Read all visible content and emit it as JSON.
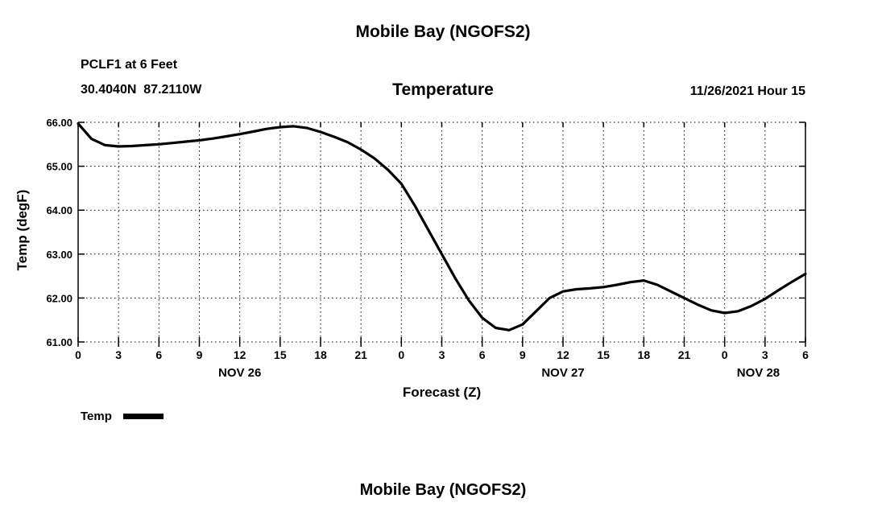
{
  "header": {
    "main_title": "Mobile Bay (NGOFS2)",
    "station_name": "PCLF1 at 6 Feet",
    "station_coords": "30.4040N  87.2110W",
    "plot_title": "Temperature",
    "run_info": "11/26/2021 Hour 15"
  },
  "footer": {
    "second_title": "Mobile Bay (NGOFS2)"
  },
  "colors": {
    "line": "#000000",
    "background": "#ffffff",
    "text": "#000000"
  },
  "chart_data": {
    "type": "line",
    "title": "Temperature",
    "xlabel": "Forecast (Z)",
    "ylabel": "Temp (degF)",
    "ylim": [
      61,
      66
    ],
    "xlim": [
      0,
      54
    ],
    "grid": true,
    "x_tick_interval_hours": 3,
    "x_tick_labels": [
      "0",
      "3",
      "6",
      "9",
      "12",
      "15",
      "18",
      "21",
      "0",
      "3",
      "6",
      "9",
      "12",
      "15",
      "18",
      "21",
      "0",
      "3",
      "6"
    ],
    "y_tick_labels": [
      "66.00",
      "65.00",
      "64.00",
      "63.00",
      "62.00",
      "61.00"
    ],
    "date_labels": [
      {
        "label": "NOV 26",
        "x": 12
      },
      {
        "label": "NOV 27",
        "x": 36
      },
      {
        "label": "NOV 28",
        "x": 50.5
      }
    ],
    "legend": {
      "position": "bottom-left",
      "entries": [
        "Temp"
      ]
    },
    "series": [
      {
        "name": "Temp",
        "color": "#000000",
        "x": [
          0,
          1,
          2,
          3,
          4,
          5,
          6,
          7,
          8,
          9,
          10,
          11,
          12,
          13,
          14,
          15,
          16,
          17,
          18,
          19,
          20,
          21,
          22,
          23,
          24,
          25,
          26,
          27,
          28,
          29,
          30,
          31,
          32,
          33,
          34,
          35,
          36,
          37,
          38,
          39,
          40,
          41,
          42,
          43,
          44,
          45,
          46,
          47,
          48,
          49,
          50,
          51,
          52,
          53,
          54
        ],
        "y": [
          65.97,
          65.62,
          65.48,
          65.45,
          65.46,
          65.48,
          65.5,
          65.53,
          65.56,
          65.59,
          65.63,
          65.68,
          65.73,
          65.79,
          65.85,
          65.89,
          65.91,
          65.87,
          65.78,
          65.67,
          65.55,
          65.38,
          65.18,
          64.92,
          64.6,
          64.1,
          63.55,
          63.0,
          62.45,
          61.95,
          61.55,
          61.32,
          61.27,
          61.4,
          61.7,
          62.0,
          62.15,
          62.2,
          62.22,
          62.25,
          62.3,
          62.36,
          62.4,
          62.3,
          62.15,
          62.0,
          61.85,
          61.72,
          61.66,
          61.7,
          61.82,
          61.98,
          62.18,
          62.37,
          62.55
        ]
      }
    ]
  }
}
